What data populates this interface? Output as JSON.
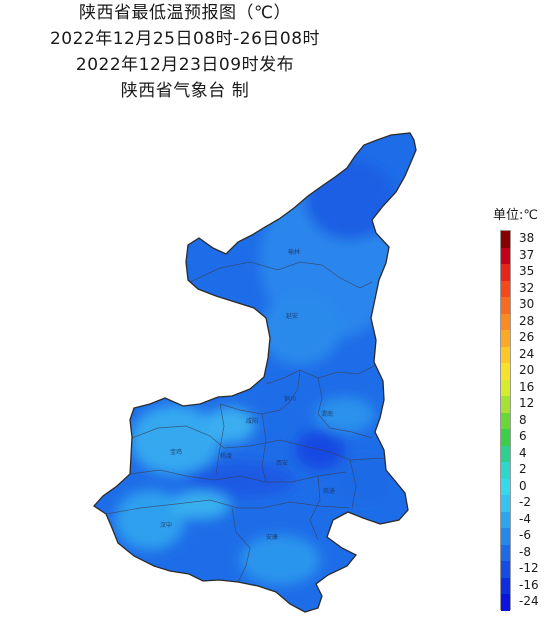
{
  "header": {
    "title": "陕西省最低温预报图（℃）",
    "period": "2022年12月25日08时-26日08时",
    "issued": "2022年12月23日09时发布",
    "issuer": "陕西省气象台 制"
  },
  "legend": {
    "title": "单位:℃",
    "levels": [
      {
        "label": "38",
        "color": "#8b0000"
      },
      {
        "label": "37",
        "color": "#c4001a"
      },
      {
        "label": "35",
        "color": "#e8241b"
      },
      {
        "label": "32",
        "color": "#f24a1d"
      },
      {
        "label": "30",
        "color": "#f76a20"
      },
      {
        "label": "28",
        "color": "#fb8a22"
      },
      {
        "label": "26",
        "color": "#fcaa25"
      },
      {
        "label": "24",
        "color": "#fdc828"
      },
      {
        "label": "20",
        "color": "#f6e22c"
      },
      {
        "label": "16",
        "color": "#d8ec2f"
      },
      {
        "label": "12",
        "color": "#a6e233"
      },
      {
        "label": "8",
        "color": "#6bd637"
      },
      {
        "label": "6",
        "color": "#3ccf4a"
      },
      {
        "label": "4",
        "color": "#2ed08f"
      },
      {
        "label": "2",
        "color": "#30d6cc"
      },
      {
        "label": "0",
        "color": "#38d8ec"
      },
      {
        "label": "-2",
        "color": "#35c4f0"
      },
      {
        "label": "-4",
        "color": "#2ea6ee"
      },
      {
        "label": "-6",
        "color": "#2688ea"
      },
      {
        "label": "-8",
        "color": "#1f6ae6"
      },
      {
        "label": "-12",
        "color": "#174ce2"
      },
      {
        "label": "-16",
        "color": "#0f2ee0"
      },
      {
        "label": "-24",
        "color": "#0a14de"
      }
    ]
  },
  "map": {
    "cities": [
      {
        "name": "榆林"
      },
      {
        "name": "延安"
      },
      {
        "name": "铜川"
      },
      {
        "name": "渭南"
      },
      {
        "name": "咸阳"
      },
      {
        "name": "宝鸡"
      },
      {
        "name": "杨凌"
      },
      {
        "name": "西安"
      },
      {
        "name": "商洛"
      },
      {
        "name": "汉中"
      },
      {
        "name": "安康"
      }
    ]
  }
}
